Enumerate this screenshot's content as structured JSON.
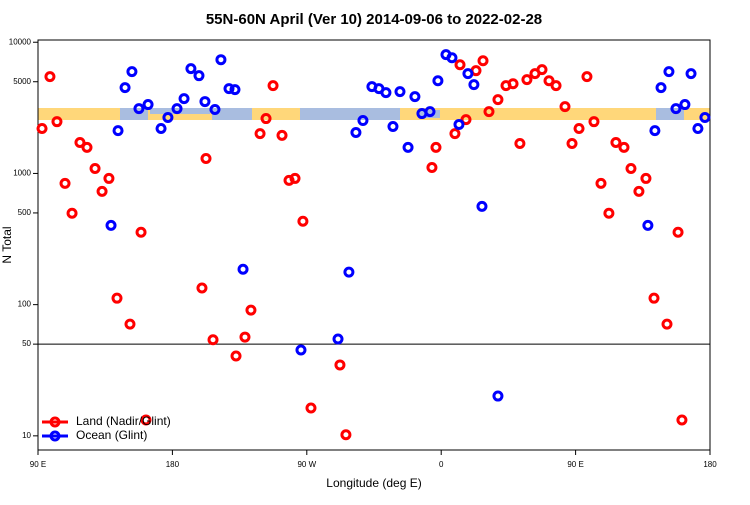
{
  "chart_data": {
    "type": "scatter",
    "title": "55N-60N April (Ver 10)   2014-09-06 to 2022-02-28",
    "x_label": "Longitude (deg E)",
    "y_label": "N Total",
    "xlim": [
      90,
      540
    ],
    "xticks": [
      {
        "value": 90,
        "label": "90 E"
      },
      {
        "value": 180,
        "label": "180"
      },
      {
        "value": 270,
        "label": "90 W"
      },
      {
        "value": 360,
        "label": "0"
      },
      {
        "value": 450,
        "label": "90 E"
      },
      {
        "value": 540,
        "label": "180"
      }
    ],
    "ylim": [
      7.8,
      10400
    ],
    "yticks": [
      10,
      50,
      100,
      500,
      1000,
      5000,
      10000
    ],
    "log_y": true,
    "hline": 50,
    "legend": "bottom-left",
    "series": [
      {
        "name": "Land (Nadir/Glint)",
        "color": "#ff0000",
        "x": [
          92.7,
          98.0,
          102.7,
          108.1,
          112.8,
          118.1,
          122.8,
          128.2,
          132.9,
          137.5,
          142.9,
          151.6,
          159.0,
          162.3,
          199.8,
          202.5,
          207.2,
          222.6,
          228.6,
          232.6,
          238.7,
          242.7,
          247.4,
          253.4,
          258.1,
          262.1,
          267.4,
          272.8,
          292.2,
          296.2,
          353.8,
          356.5,
          369.2,
          372.6,
          376.6,
          383.3,
          388.0,
          392.0,
          398.0,
          403.4,
          408.1,
          412.7,
          417.4,
          422.8,
          427.5,
          432.2,
          436.9,
          442.9,
          447.6,
          452.3,
          457.6,
          462.3,
          467.0,
          472.3,
          477.0,
          482.4,
          487.1,
          492.4,
          497.1,
          502.5,
          511.2,
          518.6,
          521.2
        ],
        "values": [
          2200,
          5470,
          2480,
          840,
          497,
          1720,
          1580,
          1090,
          730,
          916,
          112,
          71,
          356,
          13.2,
          134,
          1300,
          54,
          40.6,
          56.6,
          90.8,
          2010,
          2620,
          4670,
          1950,
          885,
          916,
          432,
          16.3,
          34.7,
          10.2,
          1110,
          1580,
          2010,
          6740,
          2570,
          6070,
          7230,
          2960,
          3650,
          4670,
          4830,
          1690,
          5190,
          5760,
          6180,
          5090,
          4670,
          3230,
          1690,
          2200,
          5470,
          2480,
          840,
          497,
          1720,
          1580,
          1090,
          730,
          916,
          112,
          71,
          356,
          13.2
        ]
      },
      {
        "name": "Ocean (Glint)",
        "color": "#0000ff",
        "x": [
          138.9,
          143.6,
          148.3,
          152.9,
          157.6,
          163.7,
          172.4,
          177.0,
          183.1,
          187.8,
          192.4,
          197.8,
          201.8,
          208.5,
          212.5,
          217.9,
          221.9,
          227.3,
          266.1,
          290.9,
          298.2,
          302.9,
          307.6,
          313.6,
          318.3,
          323.0,
          327.7,
          332.4,
          337.8,
          342.4,
          347.1,
          352.5,
          357.8,
          363.2,
          367.2,
          371.9,
          377.9,
          381.9,
          387.3,
          398.0,
          498.4,
          503.1,
          507.2,
          512.5,
          517.2,
          523.2,
          527.3,
          531.9,
          536.6
        ],
        "values": [
          402,
          2120,
          4510,
          5970,
          3120,
          3350,
          2200,
          2670,
          3120,
          3720,
          6290,
          5560,
          3530,
          3070,
          7360,
          4430,
          4350,
          186,
          45.1,
          54.7,
          177,
          2050,
          2530,
          4590,
          4430,
          4130,
          2280,
          4200,
          1580,
          3850,
          2860,
          2960,
          5090,
          8040,
          7620,
          2360,
          5760,
          4750,
          561,
          20.1,
          402,
          2120,
          4510,
          5970,
          3120,
          3350,
          5760,
          2200,
          2670
        ]
      }
    ]
  }
}
